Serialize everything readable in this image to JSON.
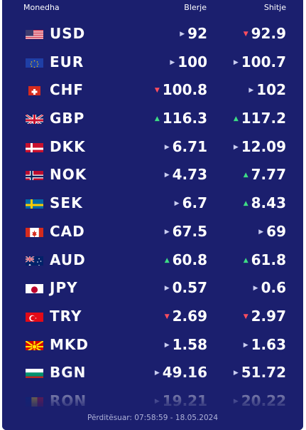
{
  "header": {
    "currency": "Monedha",
    "buy": "Blerje",
    "sell": "Shitje"
  },
  "rows": [
    {
      "code": "USD",
      "flag": "us-flag",
      "buy": "92",
      "buy_trend": "same",
      "sell": "92.9",
      "sell_trend": "down"
    },
    {
      "code": "EUR",
      "flag": "eu-flag",
      "buy": "100",
      "buy_trend": "same",
      "sell": "100.7",
      "sell_trend": "same"
    },
    {
      "code": "CHF",
      "flag": "ch-flag",
      "buy": "100.8",
      "buy_trend": "down",
      "sell": "102",
      "sell_trend": "same"
    },
    {
      "code": "GBP",
      "flag": "gb-flag",
      "buy": "116.3",
      "buy_trend": "up",
      "sell": "117.2",
      "sell_trend": "up"
    },
    {
      "code": "DKK",
      "flag": "dk-flag",
      "buy": "6.71",
      "buy_trend": "same",
      "sell": "12.09",
      "sell_trend": "same"
    },
    {
      "code": "NOK",
      "flag": "no-flag",
      "buy": "4.73",
      "buy_trend": "same",
      "sell": "7.77",
      "sell_trend": "up"
    },
    {
      "code": "SEK",
      "flag": "se-flag",
      "buy": "6.7",
      "buy_trend": "same",
      "sell": "8.43",
      "sell_trend": "up"
    },
    {
      "code": "CAD",
      "flag": "ca-flag",
      "buy": "67.5",
      "buy_trend": "same",
      "sell": "69",
      "sell_trend": "same"
    },
    {
      "code": "AUD",
      "flag": "au-flag",
      "buy": "60.8",
      "buy_trend": "up",
      "sell": "61.8",
      "sell_trend": "up"
    },
    {
      "code": "JPY",
      "flag": "jp-flag",
      "buy": "0.57",
      "buy_trend": "same",
      "sell": "0.6",
      "sell_trend": "same"
    },
    {
      "code": "TRY",
      "flag": "tr-flag",
      "buy": "2.69",
      "buy_trend": "down",
      "sell": "2.97",
      "sell_trend": "down"
    },
    {
      "code": "MKD",
      "flag": "mk-flag",
      "buy": "1.58",
      "buy_trend": "same",
      "sell": "1.63",
      "sell_trend": "same"
    },
    {
      "code": "BGN",
      "flag": "bg-flag",
      "buy": "49.16",
      "buy_trend": "same",
      "sell": "51.72",
      "sell_trend": "same"
    },
    {
      "code": "RON",
      "flag": "ro-flag",
      "buy": "19.21",
      "buy_trend": "same",
      "sell": "20.22",
      "sell_trend": "same"
    }
  ],
  "footer": {
    "updated": "Përditësuar: 07:58:59 - 18.05.2024"
  },
  "colors": {
    "panel": "#1b1f6e",
    "up": "#3ddc84",
    "down": "#ff4d5e",
    "same": "#c8ccf0"
  }
}
